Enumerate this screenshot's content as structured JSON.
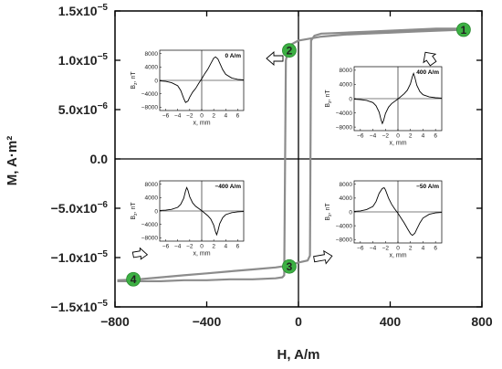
{
  "chart_data": {
    "type": "line",
    "xlabel": "H, A/m",
    "ylabel": "M, A·m²",
    "xlim": [
      -800,
      800
    ],
    "ylim": [
      -1.5e-05,
      1.5e-05
    ],
    "x_ticks": [
      "−800",
      "−400",
      "0",
      "400",
      "800"
    ],
    "x_tick_values": [
      -800,
      -400,
      0,
      400,
      800
    ],
    "y_ticks": [
      {
        "base": "1.5x10",
        "exp": "−5",
        "value": 1.5e-05
      },
      {
        "base": "1.0x10",
        "exp": "−5",
        "value": 1e-05
      },
      {
        "base": "5.0x10",
        "exp": "−6",
        "value": 5e-06
      },
      {
        "base": "0.0",
        "exp": "",
        "value": 0
      },
      {
        "base": "−5.0x10",
        "exp": "−6",
        "value": -5e-06
      },
      {
        "base": "−1.0x10",
        "exp": "−5",
        "value": -1e-05
      },
      {
        "base": "−1.5x10",
        "exp": "−5",
        "value": -1.5e-05
      }
    ],
    "series": [
      {
        "color": "#8c8c8c",
        "points": [
          [
            -790,
            -1.23e-05
          ],
          [
            -700,
            -1.22e-05
          ],
          [
            -600,
            -1.2e-05
          ],
          [
            -500,
            -1.18e-05
          ],
          [
            -400,
            -1.16e-05
          ],
          [
            -300,
            -1.14e-05
          ],
          [
            -200,
            -1.12e-05
          ],
          [
            -100,
            -1.1e-05
          ],
          [
            -40,
            -1.08e-05
          ],
          [
            0,
            -1.05e-05
          ],
          [
            40,
            -1.03e-05
          ],
          [
            50,
            -9.8e-06
          ],
          [
            55,
            1.2e-05
          ],
          [
            70,
            1.25e-05
          ],
          [
            100,
            1.27e-05
          ],
          [
            200,
            1.28e-05
          ],
          [
            300,
            1.29e-05
          ],
          [
            400,
            1.3e-05
          ],
          [
            500,
            1.31e-05
          ],
          [
            600,
            1.32e-05
          ],
          [
            700,
            1.32e-05
          ],
          [
            720,
            1.31e-05
          ],
          [
            600,
            1.3e-05
          ],
          [
            500,
            1.29e-05
          ],
          [
            400,
            1.28e-05
          ],
          [
            300,
            1.27e-05
          ],
          [
            200,
            1.26e-05
          ],
          [
            100,
            1.24e-05
          ],
          [
            0,
            1.2e-05
          ],
          [
            -40,
            1.15e-05
          ],
          [
            -55,
            1e-05
          ],
          [
            -62,
            -1.18e-05
          ],
          [
            -70,
            -1.2e-05
          ],
          [
            -100,
            -1.21e-05
          ],
          [
            -200,
            -1.22e-05
          ],
          [
            -300,
            -1.22e-05
          ],
          [
            -400,
            -1.23e-05
          ],
          [
            -500,
            -1.23e-05
          ],
          [
            -600,
            -1.24e-05
          ],
          [
            -700,
            -1.24e-05
          ],
          [
            -790,
            -1.24e-05
          ]
        ]
      }
    ],
    "markers": [
      {
        "label": "1",
        "x": 720,
        "y": 1.31e-05
      },
      {
        "label": "2",
        "x": -40,
        "y": 1.1e-05
      },
      {
        "label": "3",
        "x": -40,
        "y": -1.09e-05
      },
      {
        "label": "4",
        "x": -720,
        "y": -1.22e-05
      }
    ],
    "insets": [
      {
        "annotation": "0 A/m",
        "xlabel": "x, mm",
        "ylabel_base": "B",
        "ylabel_sub": "z",
        "ylabel_unit": ", nT",
        "xlim": [
          -7,
          7
        ],
        "ylim": [
          -9000,
          9000
        ],
        "x_ticks": [
          -6,
          -4,
          -2,
          0,
          2,
          4,
          6
        ],
        "x_tick_labels": [
          "−6",
          "−4",
          "−2",
          "0",
          "2",
          "4",
          "6"
        ],
        "y_ticks": [
          8000,
          4000,
          0,
          -4000,
          -8000
        ],
        "y_tick_labels": [
          "8000",
          "4000",
          "0",
          "−4000",
          "−8000"
        ],
        "curve": [
          [
            -7,
            -150
          ],
          [
            -6,
            -300
          ],
          [
            -5,
            -700
          ],
          [
            -4,
            -1600
          ],
          [
            -3.5,
            -3000
          ],
          [
            -3,
            -5400
          ],
          [
            -2.7,
            -6600
          ],
          [
            -2.3,
            -6200
          ],
          [
            -2,
            -5000
          ],
          [
            -1.5,
            -3500
          ],
          [
            -1,
            -2400
          ],
          [
            -0.5,
            -900
          ],
          [
            0,
            500
          ],
          [
            0.5,
            2000
          ],
          [
            1,
            3300
          ],
          [
            1.5,
            5000
          ],
          [
            2,
            6600
          ],
          [
            2.3,
            7000
          ],
          [
            2.7,
            6400
          ],
          [
            3,
            5200
          ],
          [
            3.5,
            3200
          ],
          [
            4,
            1800
          ],
          [
            5,
            700
          ],
          [
            6,
            300
          ],
          [
            7,
            150
          ]
        ]
      },
      {
        "annotation": "400 A/m",
        "xlabel": "x, mm",
        "ylabel_base": "B",
        "ylabel_sub": "z",
        "ylabel_unit": ", nT",
        "xlim": [
          -7,
          7
        ],
        "ylim": [
          -9000,
          9000
        ],
        "x_ticks": [
          -6,
          -4,
          -2,
          0,
          2,
          4,
          6
        ],
        "x_tick_labels": [
          "−6",
          "−4",
          "−2",
          "0",
          "2",
          "4",
          "6"
        ],
        "y_ticks": [
          8000,
          4000,
          0,
          -4000,
          -8000
        ],
        "y_tick_labels": [
          "8000",
          "4000",
          "0",
          "−4000",
          "−8000"
        ],
        "curve": [
          [
            -7,
            -150
          ],
          [
            -6,
            -250
          ],
          [
            -5,
            -500
          ],
          [
            -4,
            -1100
          ],
          [
            -3.5,
            -2000
          ],
          [
            -3,
            -3800
          ],
          [
            -2.7,
            -6000
          ],
          [
            -2.5,
            -7000
          ],
          [
            -2.3,
            -6200
          ],
          [
            -2,
            -4200
          ],
          [
            -1.5,
            -2400
          ],
          [
            -1,
            -1400
          ],
          [
            0,
            -100
          ],
          [
            1,
            1400
          ],
          [
            1.5,
            2400
          ],
          [
            2,
            4200
          ],
          [
            2.3,
            6200
          ],
          [
            2.5,
            7100
          ],
          [
            2.7,
            6000
          ],
          [
            3,
            3800
          ],
          [
            3.5,
            2000
          ],
          [
            4,
            1100
          ],
          [
            5,
            500
          ],
          [
            6,
            250
          ],
          [
            7,
            150
          ]
        ]
      },
      {
        "annotation": "−400 A/m",
        "xlabel": "x, mm",
        "ylabel_base": "B",
        "ylabel_sub": "z",
        "ylabel_unit": ", nT",
        "xlim": [
          -7,
          7
        ],
        "ylim": [
          -9000,
          9000
        ],
        "x_ticks": [
          -6,
          -4,
          -2,
          0,
          2,
          4,
          6
        ],
        "x_tick_labels": [
          "−6",
          "−4",
          "−2",
          "0",
          "2",
          "4",
          "6"
        ],
        "y_ticks": [
          8000,
          4000,
          0,
          -4000,
          -8000
        ],
        "y_tick_labels": [
          "8000",
          "4000",
          "0",
          "−4000",
          "−8000"
        ],
        "curve": [
          [
            -7,
            150
          ],
          [
            -6,
            250
          ],
          [
            -5,
            500
          ],
          [
            -4,
            1100
          ],
          [
            -3.5,
            2000
          ],
          [
            -3,
            3800
          ],
          [
            -2.7,
            6000
          ],
          [
            -2.5,
            7000
          ],
          [
            -2.3,
            6200
          ],
          [
            -2,
            4200
          ],
          [
            -1.5,
            2400
          ],
          [
            -1,
            1400
          ],
          [
            0,
            100
          ],
          [
            1,
            -1400
          ],
          [
            1.5,
            -2400
          ],
          [
            2,
            -4200
          ],
          [
            2.3,
            -6200
          ],
          [
            2.5,
            -7100
          ],
          [
            2.7,
            -6000
          ],
          [
            3,
            -3800
          ],
          [
            3.5,
            -2000
          ],
          [
            4,
            -1100
          ],
          [
            5,
            -500
          ],
          [
            6,
            -250
          ],
          [
            7,
            -150
          ]
        ]
      },
      {
        "annotation": "−50 A/m",
        "xlabel": "x, mm",
        "ylabel_base": "B",
        "ylabel_sub": "z",
        "ylabel_unit": ", nT",
        "xlim": [
          -7,
          7
        ],
        "ylim": [
          -9000,
          9000
        ],
        "x_ticks": [
          -6,
          -4,
          -2,
          0,
          2,
          4,
          6
        ],
        "x_tick_labels": [
          "−6",
          "−4",
          "−2",
          "0",
          "2",
          "4",
          "6"
        ],
        "y_ticks": [
          8000,
          4000,
          0,
          -4000,
          -8000
        ],
        "y_tick_labels": [
          "8000",
          "4000",
          "0",
          "−4000",
          "−8000"
        ],
        "curve": [
          [
            -7,
            150
          ],
          [
            -6,
            300
          ],
          [
            -5,
            700
          ],
          [
            -4,
            1600
          ],
          [
            -3.5,
            3000
          ],
          [
            -3,
            5400
          ],
          [
            -2.5,
            6800
          ],
          [
            -2.2,
            7000
          ],
          [
            -2,
            6400
          ],
          [
            -1.5,
            4000
          ],
          [
            -1,
            2200
          ],
          [
            -0.5,
            800
          ],
          [
            0,
            -400
          ],
          [
            0.5,
            -1800
          ],
          [
            1,
            -3200
          ],
          [
            1.5,
            -4800
          ],
          [
            2,
            -6300
          ],
          [
            2.3,
            -6800
          ],
          [
            2.7,
            -6200
          ],
          [
            3,
            -5000
          ],
          [
            3.5,
            -3200
          ],
          [
            4,
            -1800
          ],
          [
            5,
            -700
          ],
          [
            6,
            -300
          ],
          [
            7,
            -150
          ]
        ]
      }
    ]
  }
}
